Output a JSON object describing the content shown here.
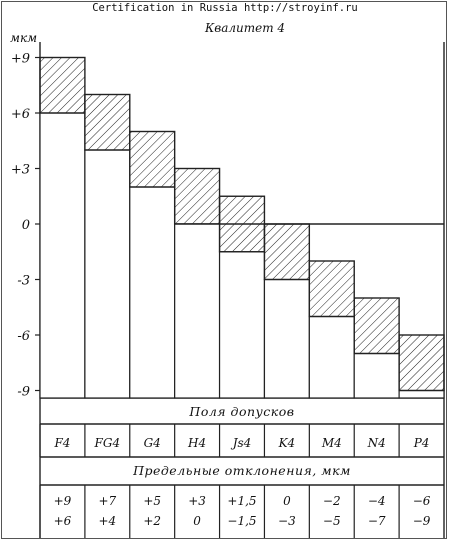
{
  "source_banner": "Certification in Russia http://stroyinf.ru",
  "chart_data": {
    "type": "bar",
    "title": "Квалитет 4",
    "ylabel": "мкм",
    "y_ticks": [
      "+9",
      "+6",
      "+3",
      "0",
      "-3",
      "-6",
      "-9"
    ],
    "y_tick_values": [
      9,
      6,
      3,
      0,
      -3,
      -6,
      -9
    ],
    "ylim": [
      -9,
      9
    ],
    "fields_header": "Поля допусков",
    "deviations_header": "Предельные отклонения, мкм",
    "categories": [
      "F4",
      "FG4",
      "G4",
      "H4",
      "Js4",
      "K4",
      "M4",
      "N4",
      "P4"
    ],
    "upper": [
      9,
      7,
      5,
      3,
      1.5,
      0,
      -2,
      -4,
      -6
    ],
    "lower": [
      6,
      4,
      2,
      0,
      -1.5,
      -3,
      -5,
      -7,
      -9
    ],
    "upper_labels": [
      "+9",
      "+7",
      "+5",
      "+3",
      "+1,5",
      "0",
      "−2",
      "−4",
      "−6"
    ],
    "lower_labels": [
      "+6",
      "+4",
      "+2",
      "0",
      "−1,5",
      "−3",
      "−5",
      "−7",
      "−9"
    ]
  }
}
